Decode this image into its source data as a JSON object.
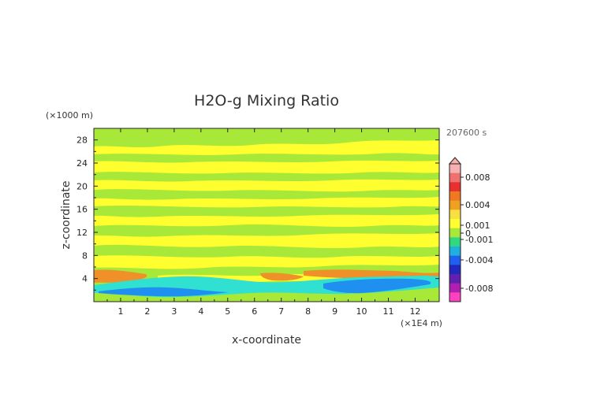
{
  "chart_data": {
    "type": "heatmap",
    "title": "H2O-g Mixing Ratio",
    "xlabel": "x-coordinate",
    "ylabel": "z-coordinate",
    "x_unit": "(×1E4 m)",
    "y_unit": "(×1000 m)",
    "time_label": "207600 s",
    "xlim": [
      0,
      12.9
    ],
    "ylim": [
      0,
      30
    ],
    "x_ticks": [
      "1",
      "2",
      "3",
      "4",
      "5",
      "6",
      "7",
      "8",
      "9",
      "10",
      "11",
      "12"
    ],
    "y_ticks": [
      "4",
      "8",
      "12",
      "16",
      "20",
      "24",
      "28"
    ],
    "colorbar": {
      "labels": [
        "0.008",
        "0.004",
        "0.001",
        "0",
        "-0.001",
        "-0.004",
        "-0.008"
      ],
      "levels": [
        0.008,
        0.004,
        0.001,
        0,
        -0.001,
        -0.004,
        -0.008
      ],
      "colors_top_to_bottom": [
        "#f7b0b0",
        "#f07070",
        "#e83030",
        "#f07820",
        "#f0a020",
        "#f8e040",
        "#ffff30",
        "#a8e838",
        "#30d880",
        "#20b0e0",
        "#2060f0",
        "#2028c0",
        "#6020b0",
        "#b020b0",
        "#ff40c0"
      ]
    },
    "field_colors": {
      "yellow": "#ffff30",
      "green": "#a8e838",
      "orange": "#f09028",
      "cyan": "#30e0d0",
      "blue": "#2090f0"
    }
  }
}
